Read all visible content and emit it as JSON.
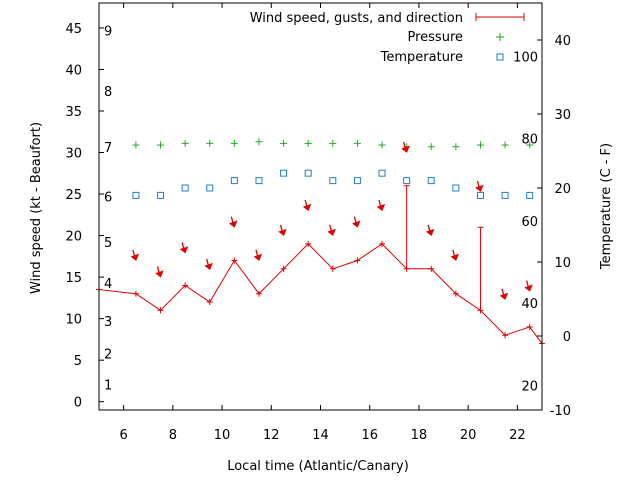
{
  "chart_data": {
    "type": "line",
    "xlabel": "Local time (Atlantic/Canary)",
    "ylabel_left": "Wind speed (kt - Beaufort)",
    "ylabel_right": "Temperature (C - F)",
    "xlim": [
      5,
      23
    ],
    "ylim_left": [
      -1,
      48
    ],
    "ylim_right": [
      -10,
      45
    ],
    "x_ticks": [
      "6",
      "8",
      "10",
      "12",
      "14",
      "16",
      "18",
      "20",
      "22"
    ],
    "y_left_ticks": [
      "0",
      "5",
      "10",
      "15",
      "20",
      "25",
      "30",
      "35",
      "40",
      "45"
    ],
    "y_right_ticks": [
      "-10",
      "0",
      "10",
      "20",
      "30",
      "40"
    ],
    "beaufort_labels": [
      "1",
      "2",
      "3",
      "4",
      "5",
      "6",
      "7",
      "8",
      "9"
    ],
    "fahrenheit_labels": [
      "20",
      "40",
      "60",
      "80",
      "100"
    ],
    "legend": {
      "position": "top-right",
      "wind": "Wind speed, gusts, and direction",
      "pressure": "Pressure",
      "temperature": "Temperature"
    },
    "colors": {
      "wind": "#e00000",
      "arrow": "#e00000",
      "pressure": "#22aa22",
      "temperature": "#1e7fd0"
    },
    "series": [
      {
        "name": "Wind speed, gusts, and direction",
        "x": [
          5,
          6.5,
          7.5,
          8.5,
          9.5,
          10.5,
          11.5,
          12.5,
          13.5,
          14.5,
          15.5,
          16.5,
          17.5,
          18.5,
          19.5,
          20.5,
          21.5,
          22.5,
          23
        ],
        "values": [
          13.5,
          13,
          11,
          14,
          12,
          17,
          13,
          16,
          19,
          16,
          17,
          19,
          16,
          16,
          13,
          11,
          8,
          9,
          7
        ]
      },
      {
        "name": "Gusts",
        "x": [
          17.5,
          20.5
        ],
        "values": [
          26,
          21
        ]
      },
      {
        "name": "Pressure",
        "x": [
          6.5,
          7.5,
          8.5,
          9.5,
          10.5,
          11.5,
          12.5,
          13.5,
          14.5,
          15.5,
          16.5,
          17.5,
          18.5,
          19.5,
          20.5,
          21.5,
          22.5
        ],
        "values": [
          30.9,
          30.9,
          31.1,
          31.1,
          31.1,
          31.3,
          31.1,
          31.1,
          31.1,
          31.1,
          30.9,
          30.7,
          30.7,
          30.7,
          30.9,
          30.9,
          30.9
        ]
      },
      {
        "name": "Temperature",
        "x": [
          6.5,
          7.5,
          8.5,
          9.5,
          10.5,
          11.5,
          12.5,
          13.5,
          14.5,
          15.5,
          16.5,
          17.5,
          18.5,
          19.5,
          20.5,
          21.5,
          22.5
        ],
        "values": [
          19,
          19,
          20,
          20,
          21,
          21,
          22,
          22,
          21,
          21,
          22,
          21,
          21,
          20,
          19,
          19,
          19
        ]
      },
      {
        "name": "Direction",
        "x": [
          6.5,
          7.5,
          8.5,
          9.5,
          10.5,
          11.5,
          12.5,
          13.5,
          14.5,
          15.5,
          16.5,
          17.5,
          18.5,
          19.5,
          20.5,
          21.5,
          22.5
        ],
        "values": [
          17.2,
          15.2,
          18.1,
          16.1,
          21.2,
          17.2,
          20.2,
          23.2,
          20.2,
          21.2,
          23.2,
          30.2,
          20.2,
          17.2,
          25.5,
          12.5,
          13.5
        ]
      }
    ]
  }
}
